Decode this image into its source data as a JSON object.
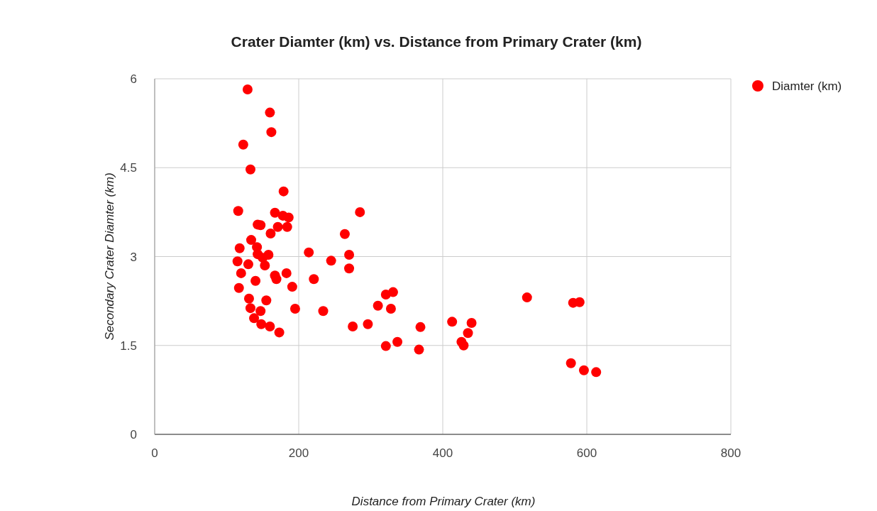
{
  "chart_data": {
    "type": "scatter",
    "title": "Crater Diamter (km) vs. Distance from Primary Crater (km)",
    "xlabel": "Distance from Primary Crater (km)",
    "ylabel": "Secondary Crater Diamter (km)",
    "xlim": [
      0,
      800
    ],
    "xticks": [
      0,
      200,
      400,
      600,
      800
    ],
    "ylim": [
      0,
      6
    ],
    "yticks": [
      0,
      1.5,
      3,
      4.5,
      6
    ],
    "grid": true,
    "legend": "top right",
    "marker": "circle",
    "series": [
      {
        "name": "Diamter (km)",
        "color": "#ff0000",
        "x": [
          129,
          160,
          162,
          123,
          133,
          179,
          116,
          167,
          143,
          147,
          178,
          186,
          171,
          184,
          161,
          134,
          118,
          142,
          143,
          158,
          150,
          115,
          130,
          153,
          120,
          167,
          169,
          183,
          140,
          117,
          191,
          131,
          155,
          133,
          147,
          195,
          138,
          148,
          160,
          173,
          214,
          221,
          234,
          285,
          264,
          245,
          270,
          270,
          321,
          331,
          310,
          328,
          275,
          296,
          369,
          321,
          337,
          367,
          413,
          440,
          435,
          426,
          429,
          517,
          581,
          590,
          578,
          596,
          613
        ],
        "values": [
          5.82,
          5.43,
          5.1,
          4.89,
          4.47,
          4.1,
          3.77,
          3.74,
          3.54,
          3.53,
          3.69,
          3.66,
          3.5,
          3.5,
          3.39,
          3.28,
          3.14,
          3.16,
          3.04,
          3.03,
          2.98,
          2.92,
          2.87,
          2.85,
          2.72,
          2.68,
          2.62,
          2.72,
          2.59,
          2.47,
          2.49,
          2.29,
          2.26,
          2.13,
          2.08,
          2.12,
          1.96,
          1.86,
          1.82,
          1.72,
          3.07,
          2.62,
          2.08,
          3.75,
          3.38,
          2.93,
          3.03,
          2.8,
          2.36,
          2.4,
          2.17,
          2.12,
          1.82,
          1.86,
          1.81,
          1.49,
          1.56,
          1.43,
          1.9,
          1.88,
          1.71,
          1.56,
          1.5,
          2.31,
          2.22,
          2.23,
          1.2,
          1.08,
          1.05
        ]
      }
    ]
  }
}
